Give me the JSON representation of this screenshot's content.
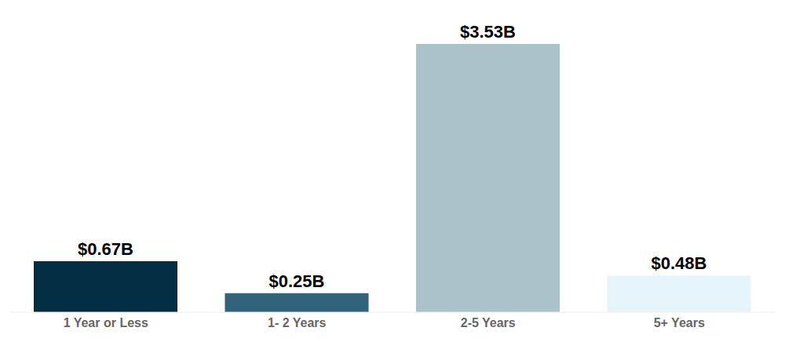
{
  "chart_data": {
    "type": "bar",
    "categories": [
      "1 Year or Less",
      "1- 2 Years",
      "2-5 Years",
      "5+ Years"
    ],
    "values": [
      0.67,
      0.25,
      3.53,
      0.48
    ],
    "value_labels": [
      "$0.67B",
      "$0.25B",
      "$3.53B",
      "$0.48B"
    ],
    "colors": [
      "#032d42",
      "#31637a",
      "#abc2cb",
      "#e4f4f9"
    ],
    "data_labels": true,
    "tick_labels": "x",
    "grid": false
  }
}
